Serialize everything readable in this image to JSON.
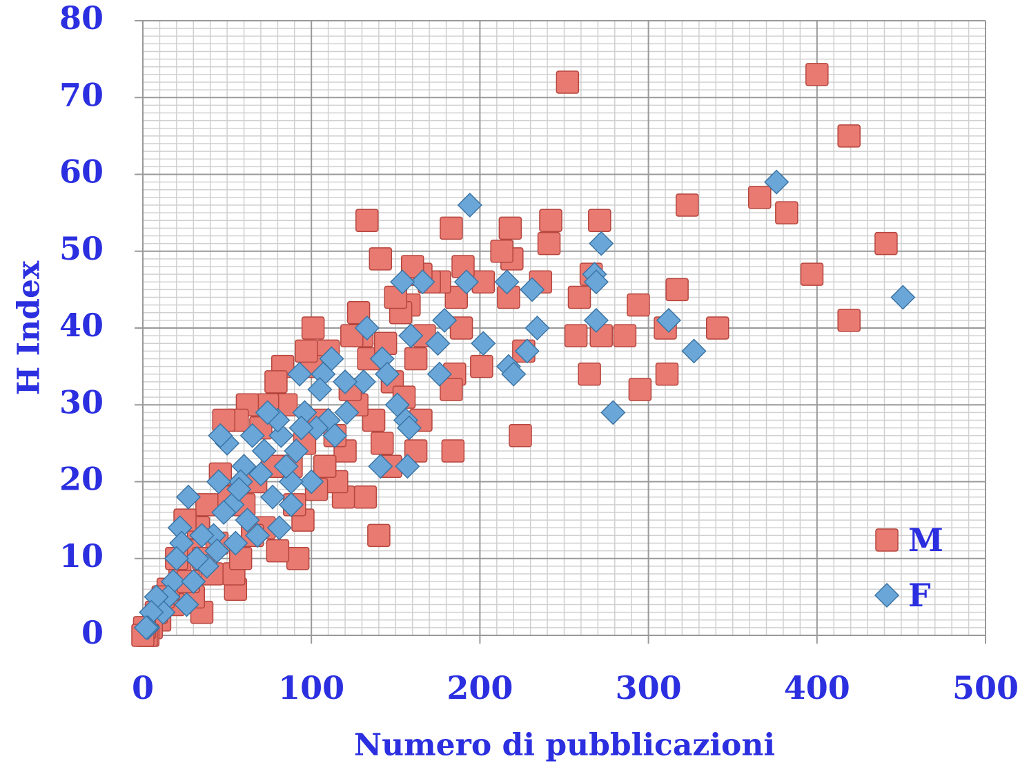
{
  "chart_data": {
    "type": "scatter",
    "xlabel": "Numero di pubblicazioni",
    "ylabel": "H Index",
    "xlim": [
      0,
      500
    ],
    "ylim": [
      0,
      80
    ],
    "xticks": [
      0,
      100,
      200,
      300,
      400,
      500
    ],
    "yticks": [
      0,
      10,
      20,
      30,
      40,
      50,
      60,
      70,
      80
    ],
    "grid": true,
    "minor_grid": {
      "x": 10,
      "y": 1
    },
    "legend": "lower right",
    "series": [
      {
        "name": "M",
        "color": "#e97a71",
        "marker": "square",
        "x": [
          252,
          400,
          419,
          366,
          382,
          323,
          441,
          397,
          419,
          341,
          310,
          317,
          311,
          295,
          294,
          286,
          272,
          271,
          266,
          259,
          257,
          265,
          242,
          241,
          236,
          226,
          224,
          219,
          218,
          217,
          213,
          202,
          201,
          190,
          189,
          186,
          185,
          183,
          183,
          184,
          176,
          170,
          165,
          167,
          165,
          160,
          162,
          162,
          158,
          153,
          150,
          148,
          147,
          141,
          142,
          140,
          137,
          133,
          132,
          130,
          128,
          127,
          124,
          120,
          119,
          115,
          110,
          105,
          101,
          100,
          97,
          95,
          92,
          88,
          85,
          83,
          80,
          79,
          74,
          70,
          67,
          62,
          60,
          56,
          55,
          54,
          51,
          48,
          46,
          41,
          38,
          35,
          33,
          30,
          28,
          25,
          22,
          20,
          18,
          15,
          12,
          10,
          8,
          5,
          3,
          2,
          1,
          0,
          114,
          108,
          103,
          96,
          90,
          77,
          72,
          65,
          58,
          44,
          36,
          27,
          123,
          134,
          144,
          155
        ],
        "values": [
          72,
          73,
          65,
          57,
          55,
          56,
          51,
          47,
          41,
          40,
          40,
          45,
          34,
          32,
          43,
          39,
          39,
          54,
          47,
          44,
          39,
          34,
          54,
          51,
          46,
          37,
          26,
          49,
          53,
          44,
          50,
          46,
          35,
          48,
          40,
          44,
          34,
          53,
          32,
          24,
          46,
          46,
          47,
          39,
          28,
          48,
          36,
          24,
          43,
          42,
          44,
          33,
          22,
          49,
          25,
          13,
          28,
          54,
          18,
          39,
          42,
          30,
          39,
          24,
          18,
          20,
          37,
          28,
          40,
          35,
          37,
          15,
          10,
          22,
          30,
          35,
          11,
          33,
          30,
          27,
          20,
          30,
          17,
          28,
          6,
          8,
          18,
          28,
          21,
          8,
          17,
          3,
          14,
          5,
          11,
          15,
          8,
          10,
          4,
          6,
          5,
          2,
          3,
          1,
          0,
          0,
          1,
          0,
          26,
          22,
          19,
          25,
          17,
          22,
          14,
          13,
          10,
          12,
          10,
          7,
          32,
          36,
          38,
          31
        ]
      },
      {
        "name": "F",
        "color": "#6aa7d8",
        "marker": "diamond",
        "x": [
          194,
          376,
          451,
          272,
          268,
          269,
          269,
          279,
          312,
          327,
          234,
          228,
          231,
          216,
          217,
          220,
          202,
          192,
          179,
          175,
          176,
          166,
          154,
          159,
          156,
          158,
          151,
          157,
          141,
          142,
          145,
          133,
          131,
          120,
          121,
          112,
          107,
          105,
          110,
          114,
          103,
          100,
          96,
          93,
          94,
          91,
          88,
          85,
          82,
          80,
          74,
          77,
          81,
          72,
          70,
          68,
          65,
          60,
          58,
          55,
          53,
          50,
          46,
          48,
          45,
          42,
          44,
          35,
          38,
          32,
          27,
          22,
          23,
          20,
          18,
          15,
          12,
          8,
          5,
          3,
          2,
          26,
          30,
          62,
          57,
          88
        ],
        "values": [
          56,
          59,
          44,
          51,
          47,
          46,
          41,
          29,
          41,
          37,
          40,
          37,
          45,
          46,
          35,
          34,
          38,
          46,
          41,
          38,
          34,
          46,
          46,
          39,
          28,
          27,
          30,
          22,
          22,
          36,
          34,
          40,
          33,
          33,
          29,
          36,
          34,
          32,
          28,
          26,
          27,
          20,
          29,
          34,
          27,
          24,
          20,
          22,
          26,
          28,
          29,
          18,
          14,
          24,
          21,
          13,
          26,
          22,
          20,
          12,
          17,
          25,
          26,
          16,
          20,
          13,
          11,
          13,
          9,
          10,
          18,
          14,
          12,
          10,
          7,
          5,
          3,
          5,
          3,
          1,
          1,
          4,
          7,
          15,
          19,
          17
        ]
      }
    ]
  }
}
